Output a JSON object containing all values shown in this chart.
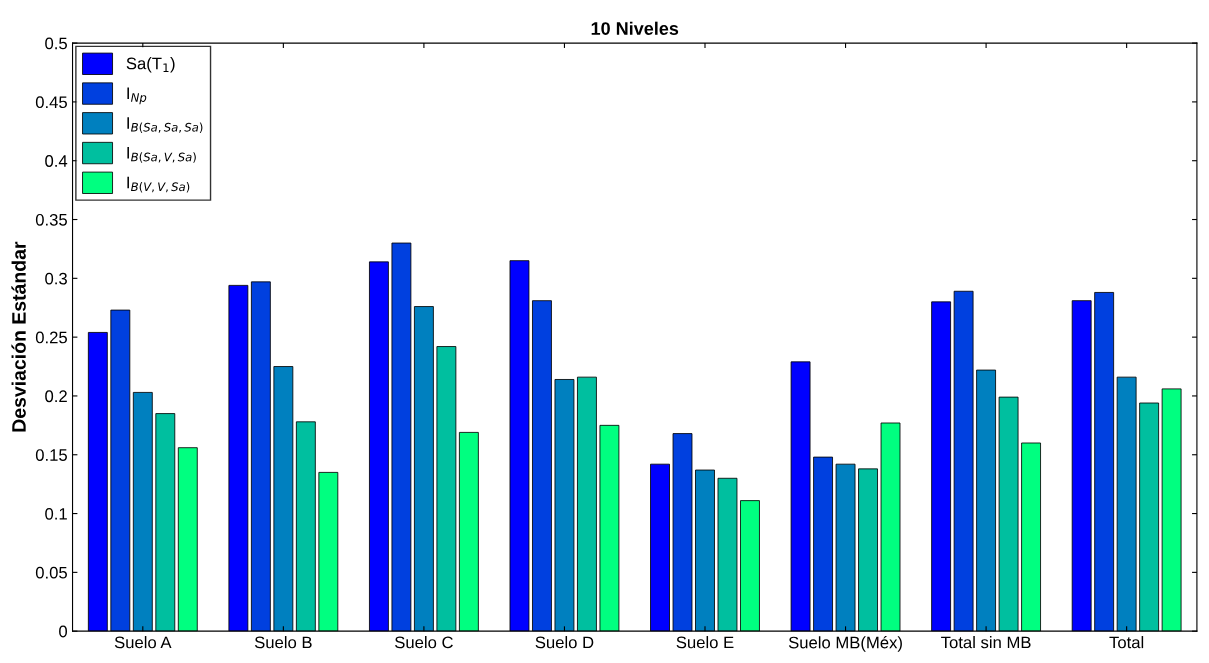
{
  "chart_data": {
    "type": "bar",
    "title": "10 Niveles",
    "ylabel": "Desviación Estándar",
    "categories": [
      "Suelo A",
      "Suelo B",
      "Suelo C",
      "Suelo D",
      "Suelo E",
      "Suelo MB(Méx)",
      "Total sin MB",
      "Total"
    ],
    "series": [
      {
        "name": "Sa(T$_{1}$)",
        "color": "#0000ff",
        "values": [
          0.254,
          0.294,
          0.314,
          0.315,
          0.142,
          0.229,
          0.28,
          0.281
        ]
      },
      {
        "name": "I$_{Np}$",
        "color": "#0040df",
        "values": [
          0.273,
          0.297,
          0.33,
          0.281,
          0.168,
          0.148,
          0.289,
          0.288
        ]
      },
      {
        "name": "I$_{B(Sa,Sa,Sa)}$",
        "color": "#0080bf",
        "values": [
          0.203,
          0.225,
          0.276,
          0.214,
          0.137,
          0.142,
          0.222,
          0.216
        ]
      },
      {
        "name": "I$_{B(Sa,V,Sa)}$",
        "color": "#00bf9f",
        "values": [
          0.185,
          0.178,
          0.242,
          0.216,
          0.13,
          0.138,
          0.199,
          0.194
        ]
      },
      {
        "name": "I$_{B(V,V,Sa)}$",
        "color": "#00ff80",
        "values": [
          0.156,
          0.135,
          0.169,
          0.175,
          0.111,
          0.177,
          0.16,
          0.206
        ]
      }
    ],
    "ylim": [
      0,
      0.5
    ],
    "yticks": [
      0,
      0.05,
      0.1,
      0.15,
      0.2,
      0.25,
      0.3,
      0.35,
      0.4,
      0.45,
      0.5
    ],
    "grid": false,
    "legend": "top left"
  }
}
